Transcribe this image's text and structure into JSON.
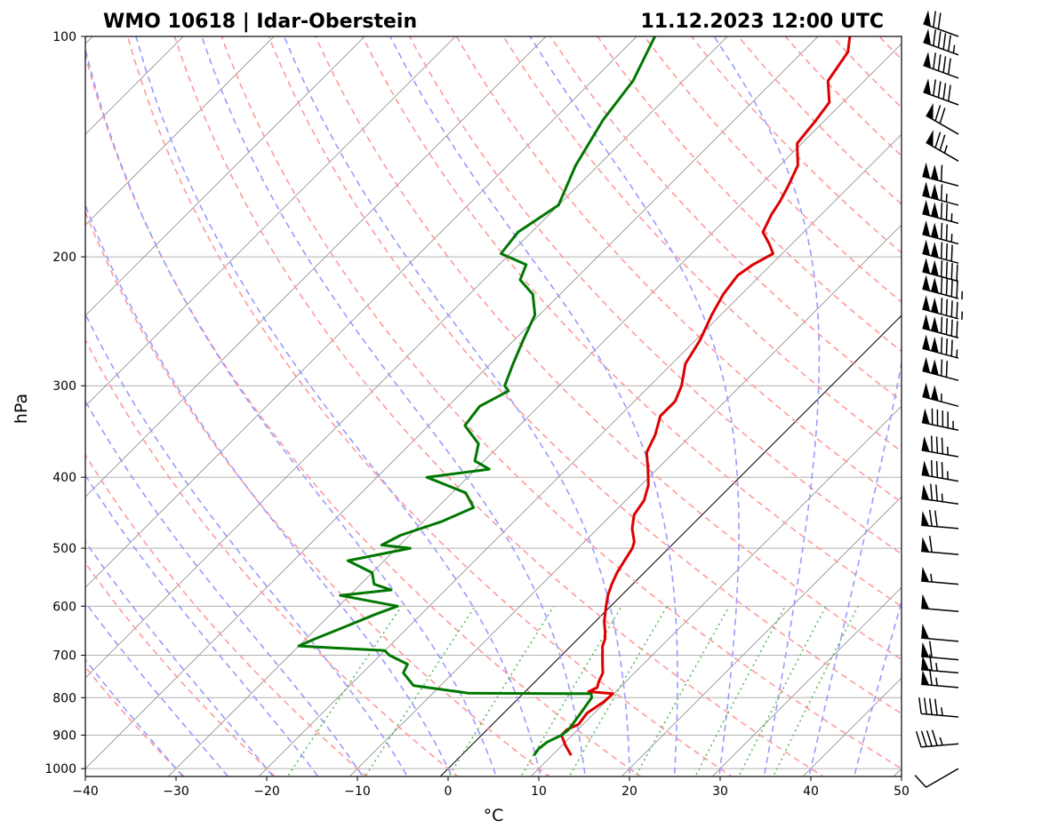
{
  "chart_data": {
    "type": "line",
    "title_left": "WMO 10618 | Idar-Oberstein",
    "title_right": "11.12.2023 12:00 UTC",
    "xlabel": "°C",
    "ylabel": "hPa",
    "xlim": [
      -40,
      50
    ],
    "ylim": [
      1025,
      100
    ],
    "y_scale": "log",
    "x_ticks": [
      {
        "label": "−40",
        "value": -40
      },
      {
        "label": "−30",
        "value": -30
      },
      {
        "label": "−20",
        "value": -20
      },
      {
        "label": "−10",
        "value": -10
      },
      {
        "label": "0",
        "value": 0
      },
      {
        "label": "10",
        "value": 10
      },
      {
        "label": "20",
        "value": 20
      },
      {
        "label": "30",
        "value": 30
      },
      {
        "label": "40",
        "value": 40
      },
      {
        "label": "50",
        "value": 50
      }
    ],
    "y_ticks": [
      {
        "label": "100",
        "value": 100
      },
      {
        "label": "200",
        "value": 200
      },
      {
        "label": "300",
        "value": 300
      },
      {
        "label": "400",
        "value": 400
      },
      {
        "label": "500",
        "value": 500
      },
      {
        "label": "600",
        "value": 600
      },
      {
        "label": "700",
        "value": 700
      },
      {
        "label": "800",
        "value": 800
      },
      {
        "label": "900",
        "value": 900
      },
      {
        "label": "1000",
        "value": 1000
      }
    ],
    "grid": true,
    "colors": {
      "temperature": "#dd0000",
      "dewpoint": "#007700",
      "dry_adiabats": "#ff9a9a",
      "moist_adiabats": "#9a9aff",
      "mixing_ratio": "#5cb85c",
      "isotherms": "#888888",
      "zero_isotherm": "#000000"
    },
    "series": [
      {
        "key": "temperature",
        "pressure": [
          959,
          930,
          900,
          885,
          870,
          840,
          810,
          790,
          785,
          775,
          760,
          740,
          720,
          700,
          680,
          665,
          650,
          630,
          600,
          580,
          560,
          540,
          520,
          500,
          490,
          470,
          450,
          430,
          410,
          390,
          370,
          350,
          330,
          315,
          300,
          280,
          260,
          240,
          225,
          212,
          205,
          198,
          192,
          185,
          175,
          168,
          160,
          150,
          140,
          130,
          123,
          115,
          105,
          100
        ],
        "values": [
          12.1,
          10.4,
          8.8,
          8.8,
          9.5,
          9.2,
          9.8,
          9.9,
          7.0,
          7.5,
          7.0,
          6.5,
          5.5,
          4.5,
          3.5,
          3.0,
          2.2,
          1.0,
          -0.5,
          -1.5,
          -2.3,
          -3.0,
          -3.5,
          -4.0,
          -4.5,
          -6.2,
          -7.5,
          -8.0,
          -9.2,
          -11.0,
          -13.0,
          -14.0,
          -15.5,
          -15.5,
          -16.5,
          -18.5,
          -19.5,
          -21.0,
          -22.0,
          -22.5,
          -22.0,
          -21.0,
          -22.5,
          -24.5,
          -25.5,
          -26.0,
          -26.8,
          -28.0,
          -30.5,
          -31.0,
          -31.5,
          -34.0,
          -35.0,
          -36.5
        ]
      },
      {
        "key": "dewpoint",
        "pressure": [
          959,
          940,
          920,
          900,
          885,
          840,
          800,
          790,
          789,
          770,
          740,
          720,
          700,
          690,
          680,
          665,
          640,
          615,
          600,
          580,
          570,
          560,
          540,
          520,
          500,
          495,
          480,
          460,
          440,
          420,
          400,
          390,
          380,
          360,
          340,
          320,
          305,
          300,
          280,
          260,
          240,
          225,
          215,
          205,
          198,
          185,
          170,
          150,
          130,
          115,
          100
        ],
        "values": [
          8.0,
          7.8,
          8.0,
          8.8,
          9.0,
          8.5,
          8.0,
          7.5,
          -6.0,
          -13.0,
          -15.5,
          -16.0,
          -19.0,
          -20.0,
          -30.0,
          -29.0,
          -27.0,
          -25.0,
          -23.5,
          -31.0,
          -26.0,
          -28.5,
          -30.0,
          -34.0,
          -28.5,
          -32.0,
          -31.0,
          -28.0,
          -26.0,
          -28.5,
          -34.5,
          -28.5,
          -31.0,
          -32.5,
          -36.0,
          -36.5,
          -35.0,
          -36.0,
          -37.5,
          -39.0,
          -40.5,
          -43.0,
          -46.0,
          -47.0,
          -51.0,
          -51.5,
          -50.0,
          -52.5,
          -54.5,
          -55.5,
          -58.0
        ]
      }
    ],
    "wind_barbs": [
      {
        "p": 1000,
        "speed_kt": 10,
        "dir": 240
      },
      {
        "p": 925,
        "speed_kt": 45,
        "dir": 265
      },
      {
        "p": 850,
        "speed_kt": 45,
        "dir": 275
      },
      {
        "p": 775,
        "speed_kt": 65,
        "dir": 275
      },
      {
        "p": 740,
        "speed_kt": 65,
        "dir": 275
      },
      {
        "p": 710,
        "speed_kt": 60,
        "dir": 275
      },
      {
        "p": 670,
        "speed_kt": 50,
        "dir": 275
      },
      {
        "p": 610,
        "speed_kt": 50,
        "dir": 275
      },
      {
        "p": 560,
        "speed_kt": 55,
        "dir": 275
      },
      {
        "p": 510,
        "speed_kt": 60,
        "dir": 275
      },
      {
        "p": 470,
        "speed_kt": 70,
        "dir": 275
      },
      {
        "p": 435,
        "speed_kt": 75,
        "dir": 278
      },
      {
        "p": 405,
        "speed_kt": 85,
        "dir": 280
      },
      {
        "p": 375,
        "speed_kt": 85,
        "dir": 280
      },
      {
        "p": 345,
        "speed_kt": 95,
        "dir": 282
      },
      {
        "p": 320,
        "speed_kt": 105,
        "dir": 285
      },
      {
        "p": 295,
        "speed_kt": 120,
        "dir": 285
      },
      {
        "p": 275,
        "speed_kt": 135,
        "dir": 285
      },
      {
        "p": 258,
        "speed_kt": 140,
        "dir": 285
      },
      {
        "p": 243,
        "speed_kt": 145,
        "dir": 285
      },
      {
        "p": 228,
        "speed_kt": 145,
        "dir": 285
      },
      {
        "p": 216,
        "speed_kt": 140,
        "dir": 285
      },
      {
        "p": 204,
        "speed_kt": 130,
        "dir": 285
      },
      {
        "p": 192,
        "speed_kt": 125,
        "dir": 285
      },
      {
        "p": 180,
        "speed_kt": 125,
        "dir": 285
      },
      {
        "p": 170,
        "speed_kt": 115,
        "dir": 285
      },
      {
        "p": 160,
        "speed_kt": 110,
        "dir": 285
      },
      {
        "p": 148,
        "speed_kt": 75,
        "dir": 300
      },
      {
        "p": 136,
        "speed_kt": 70,
        "dir": 300
      },
      {
        "p": 124,
        "speed_kt": 90,
        "dir": 290
      },
      {
        "p": 114,
        "speed_kt": 90,
        "dir": 290
      },
      {
        "p": 106,
        "speed_kt": 95,
        "dir": 290
      },
      {
        "p": 100,
        "speed_kt": 70,
        "dir": 290
      }
    ]
  }
}
